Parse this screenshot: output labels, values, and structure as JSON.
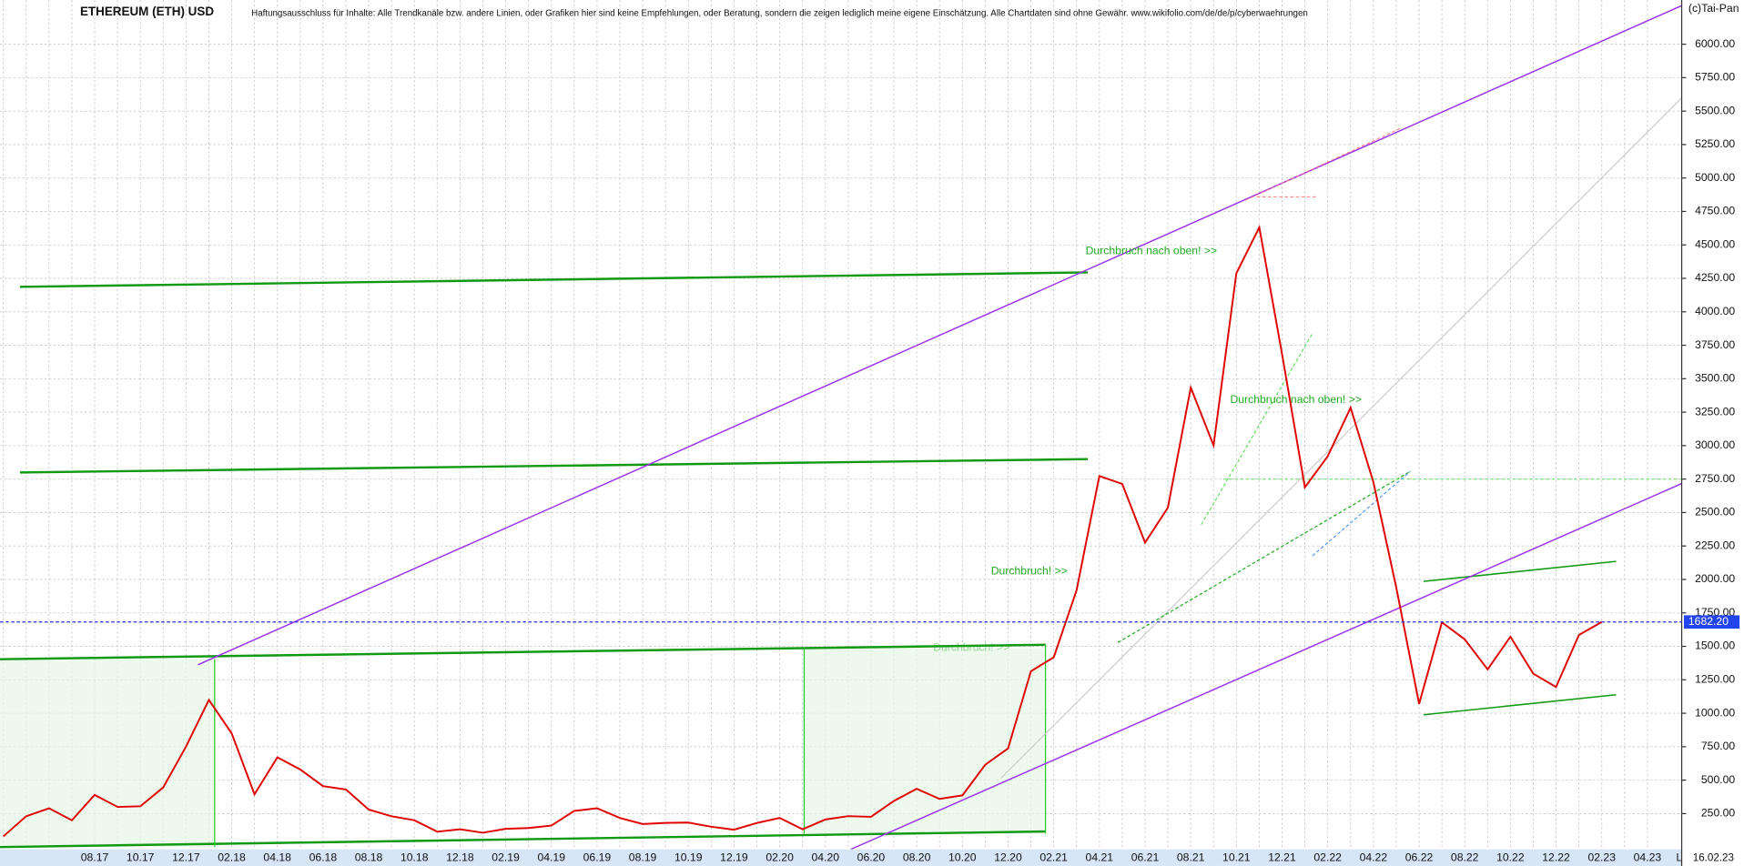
{
  "chart_data": {
    "type": "line",
    "title": "ETHEREUM (ETH) USD",
    "subtitle": "Haftungsausschluss für Inhalte: Alle Trendkanäle bzw. andere Linien, oder Grafiken hier sind keine Empfehlungen, oder Beratung, sondern die zeigen lediglich meine eigene Einschätzung. Alle Chartdaten sind ohne Gewähr.  www.wikifolio.com/de/de/p/cyberwaehrungen",
    "copyright": "(c)Tai-Pan",
    "date": "16.02.23",
    "axis_corner": "L",
    "annotations": [
      "Durchbruch nach oben! >>",
      "Durchbruch nach oben! >>",
      "Durchbruch! >>",
      "Durchbruch! >>"
    ],
    "categories": [
      null,
      null,
      null,
      null,
      "08.17",
      null,
      "10.17",
      null,
      "12.17",
      null,
      "02.18",
      null,
      "04.18",
      null,
      "06.18",
      null,
      "08.18",
      null,
      "10.18",
      null,
      "12.18",
      null,
      "02.19",
      null,
      "04.19",
      null,
      "06.19",
      null,
      "08.19",
      null,
      "10.19",
      null,
      "12.19",
      null,
      "02.20",
      null,
      "04.20",
      null,
      "06.20",
      null,
      "08.20",
      null,
      "10.20",
      null,
      "12.20",
      null,
      "02.21",
      null,
      "04.21",
      null,
      "06.21",
      null,
      "08.21",
      null,
      "10.21",
      null,
      "12.21",
      null,
      "02.22",
      null,
      "04.22",
      null,
      "06.22",
      null,
      "08.22",
      null,
      "10.22",
      null,
      "12.22",
      null,
      "02.23",
      null,
      "04.23"
    ],
    "series": [
      {
        "name": "ETH",
        "color": "#e00000",
        "values": [
          80,
          230,
          290,
          200,
          390,
          300,
          305,
          445,
          750,
          1100,
          850,
          395,
          670,
          580,
          455,
          430,
          280,
          230,
          200,
          115,
          133,
          107,
          136,
          142,
          160,
          270,
          290,
          218,
          172,
          180,
          183,
          152,
          130,
          180,
          218,
          133,
          206,
          231,
          226,
          345,
          435,
          360,
          386,
          615,
          737,
          1314,
          1418,
          1918,
          2773,
          2714,
          2275,
          2536,
          3433,
          3001,
          4288,
          4631,
          3683,
          2688,
          2920,
          3283,
          2727,
          1942,
          1070,
          1680,
          1553,
          1328,
          1572,
          1296,
          1196,
          1585,
          1682,
          null,
          null
        ]
      }
    ],
    "last_price": {
      "value": 1682.2,
      "label": "1682.20"
    },
    "ylim": [
      0,
      6330
    ],
    "yticks": [
      {
        "value": 250,
        "label": "250.00"
      },
      {
        "value": 500,
        "label": "500.00"
      },
      {
        "value": 750,
        "label": "750.00"
      },
      {
        "value": 1000,
        "label": "1000.00"
      },
      {
        "value": 1250,
        "label": "1250.00"
      },
      {
        "value": 1500,
        "label": "1500.00"
      },
      {
        "value": 1750,
        "label": "1750.00"
      },
      {
        "value": 2000,
        "label": "2000.00"
      },
      {
        "value": 2250,
        "label": "2250.00"
      },
      {
        "value": 2500,
        "label": "2500.00"
      },
      {
        "value": 2750,
        "label": "2750.00"
      },
      {
        "value": 3000,
        "label": "3000.00"
      },
      {
        "value": 3250,
        "label": "3250.00"
      },
      {
        "value": 3500,
        "label": "3500.00"
      },
      {
        "value": 3750,
        "label": "3750.00"
      },
      {
        "value": 4000,
        "label": "4000.00"
      },
      {
        "value": 4250,
        "label": "4250.00"
      },
      {
        "value": 4500,
        "label": "4500.00"
      },
      {
        "value": 4750,
        "label": "4750.00"
      },
      {
        "value": 5000,
        "label": "5000.00"
      },
      {
        "value": 5250,
        "label": "5250.00"
      },
      {
        "value": 5500,
        "label": "5500.00"
      },
      {
        "value": 5750,
        "label": "5750.00"
      },
      {
        "value": 6000,
        "label": "6000.00"
      }
    ],
    "grid": true
  }
}
